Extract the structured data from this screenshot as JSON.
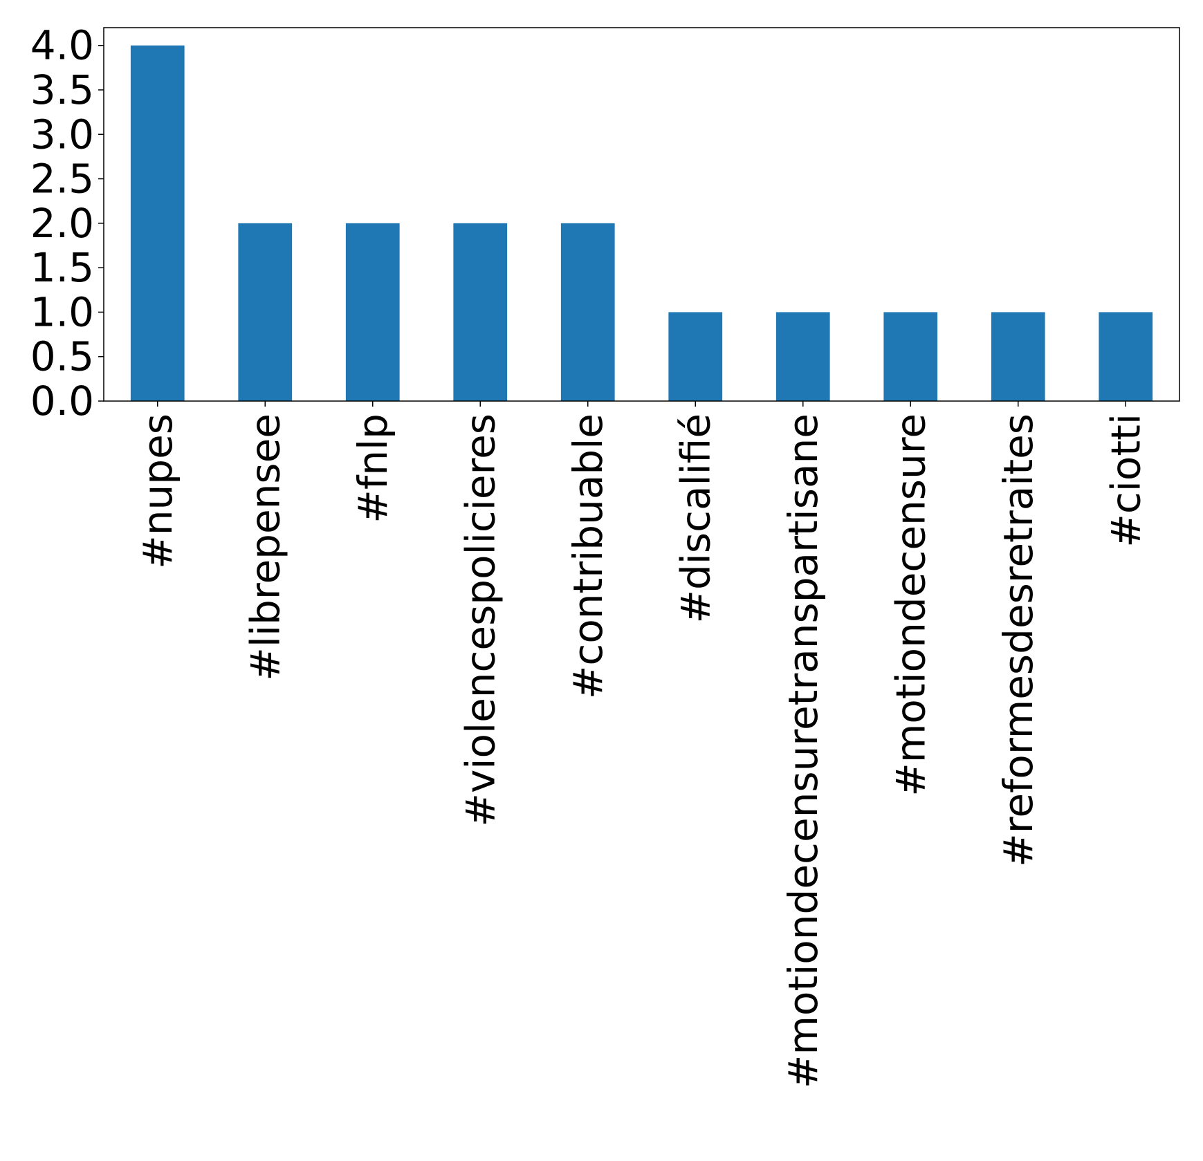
{
  "chart_data": {
    "type": "bar",
    "title": "",
    "xlabel": "",
    "ylabel": "",
    "categories": [
      "#nupes",
      "#librepensee",
      "#fnlp",
      "#violencespolicieres",
      "#contribuable",
      "#discalifié",
      "#motiondecensuretranspartisane",
      "#motiondecensure",
      "#reformesdesretraites",
      "#ciotti"
    ],
    "values": [
      4,
      2,
      2,
      2,
      2,
      1,
      1,
      1,
      1,
      1
    ],
    "ylim": [
      0,
      4.2
    ],
    "yticks": [
      "0.0",
      "0.5",
      "1.0",
      "1.5",
      "2.0",
      "2.5",
      "3.0",
      "3.5",
      "4.0"
    ],
    "bar_color": "#1f77b4",
    "grid": false,
    "legend": "none"
  }
}
